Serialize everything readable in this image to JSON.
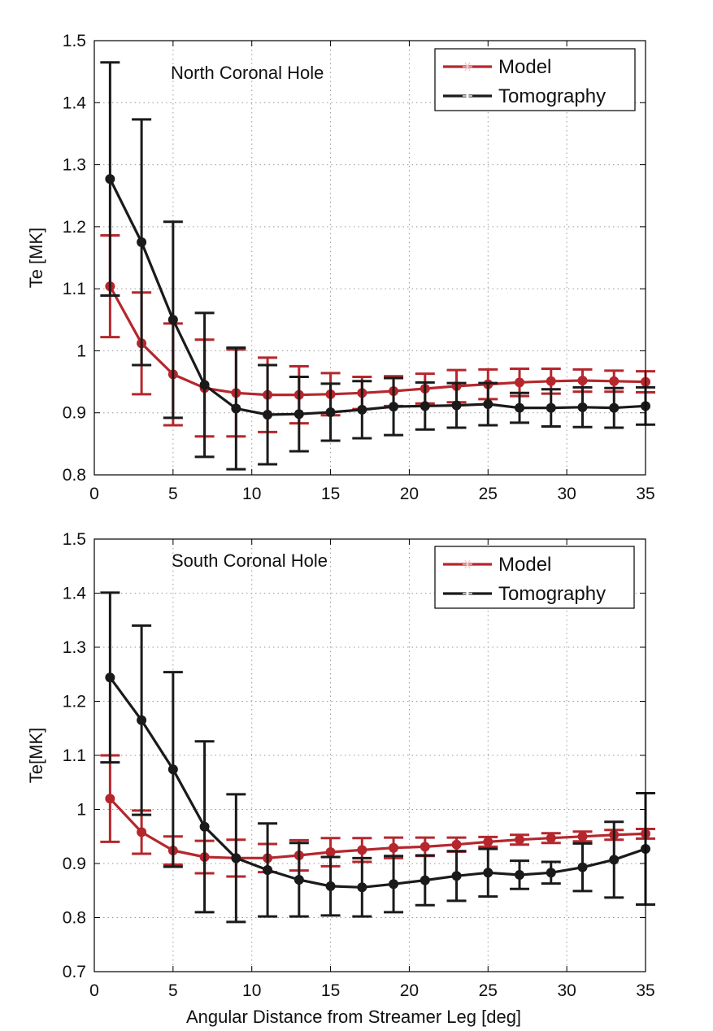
{
  "chart_data": [
    {
      "type": "line",
      "title": "",
      "annotation": "North Coronal Hole",
      "xlabel": "",
      "ylabel": "Te [MK]",
      "xlim": [
        0,
        35
      ],
      "ylim": [
        0.8,
        1.5
      ],
      "xticks": [
        0,
        5,
        10,
        15,
        20,
        25,
        30,
        35
      ],
      "xtick_labels": [
        "0",
        "5",
        "10",
        "15",
        "20",
        "25",
        "30",
        "35"
      ],
      "yticks": [
        0.8,
        0.9,
        1.0,
        1.1,
        1.2,
        1.3,
        1.4,
        1.5
      ],
      "ytick_labels": [
        "0.8",
        "0.9",
        "1",
        "1.1",
        "1.2",
        "1.3",
        "1.4",
        "1.5"
      ],
      "grid": true,
      "legend_position": "top-right",
      "x": [
        1,
        3,
        5,
        7,
        9,
        11,
        13,
        15,
        17,
        19,
        21,
        23,
        25,
        27,
        29,
        31,
        33,
        35
      ],
      "series": [
        {
          "name": "Model",
          "color": "#b5272d",
          "values": [
            1.104,
            1.012,
            0.962,
            0.94,
            0.932,
            0.929,
            0.929,
            0.93,
            0.932,
            0.935,
            0.939,
            0.943,
            0.946,
            0.949,
            0.951,
            0.952,
            0.951,
            0.95
          ],
          "errors": [
            0.082,
            0.082,
            0.082,
            0.078,
            0.07,
            0.06,
            0.046,
            0.034,
            0.026,
            0.024,
            0.024,
            0.026,
            0.024,
            0.022,
            0.02,
            0.018,
            0.017,
            0.017
          ]
        },
        {
          "name": "Tomography",
          "color": "#1a1a1a",
          "values": [
            1.277,
            1.175,
            1.05,
            0.945,
            0.907,
            0.897,
            0.898,
            0.901,
            0.905,
            0.91,
            0.911,
            0.912,
            0.914,
            0.908,
            0.908,
            0.909,
            0.908,
            0.911
          ],
          "errors": [
            0.188,
            0.198,
            0.158,
            0.116,
            0.098,
            0.08,
            0.06,
            0.046,
            0.046,
            0.046,
            0.038,
            0.036,
            0.034,
            0.024,
            0.03,
            0.032,
            0.032,
            0.03
          ]
        }
      ]
    },
    {
      "type": "line",
      "title": "",
      "annotation": "South Coronal Hole",
      "xlabel": "Angular Distance from Streamer Leg [deg]",
      "ylabel": "Te[MK]",
      "xlim": [
        0,
        35
      ],
      "ylim": [
        0.7,
        1.5
      ],
      "xticks": [
        0,
        5,
        10,
        15,
        20,
        25,
        30,
        35
      ],
      "xtick_labels": [
        "0",
        "5",
        "10",
        "15",
        "20",
        "25",
        "30",
        "35"
      ],
      "yticks": [
        0.7,
        0.8,
        0.9,
        1.0,
        1.1,
        1.2,
        1.3,
        1.4,
        1.5
      ],
      "ytick_labels": [
        "0.7",
        "0.8",
        "0.9",
        "1",
        "1.1",
        "1.2",
        "1.3",
        "1.4",
        "1.5"
      ],
      "grid": true,
      "legend_position": "top-right",
      "x": [
        1,
        3,
        5,
        7,
        9,
        11,
        13,
        15,
        17,
        19,
        21,
        23,
        25,
        27,
        29,
        31,
        33,
        35
      ],
      "series": [
        {
          "name": "Model",
          "color": "#b5272d",
          "values": [
            1.02,
            0.958,
            0.924,
            0.912,
            0.91,
            0.91,
            0.915,
            0.921,
            0.925,
            0.929,
            0.931,
            0.935,
            0.94,
            0.944,
            0.947,
            0.95,
            0.953,
            0.955
          ],
          "errors": [
            0.08,
            0.04,
            0.026,
            0.03,
            0.034,
            0.026,
            0.028,
            0.026,
            0.022,
            0.019,
            0.017,
            0.013,
            0.009,
            0.009,
            0.009,
            0.009,
            0.009,
            0.009
          ]
        },
        {
          "name": "Tomography",
          "color": "#1a1a1a",
          "values": [
            1.244,
            1.165,
            1.074,
            0.968,
            0.91,
            0.888,
            0.87,
            0.858,
            0.856,
            0.862,
            0.869,
            0.877,
            0.883,
            0.879,
            0.883,
            0.893,
            0.907,
            0.927
          ],
          "errors": [
            0.157,
            0.175,
            0.18,
            0.158,
            0.118,
            0.086,
            0.068,
            0.054,
            0.054,
            0.052,
            0.046,
            0.046,
            0.044,
            0.026,
            0.02,
            0.044,
            0.07,
            0.103
          ]
        }
      ]
    }
  ]
}
